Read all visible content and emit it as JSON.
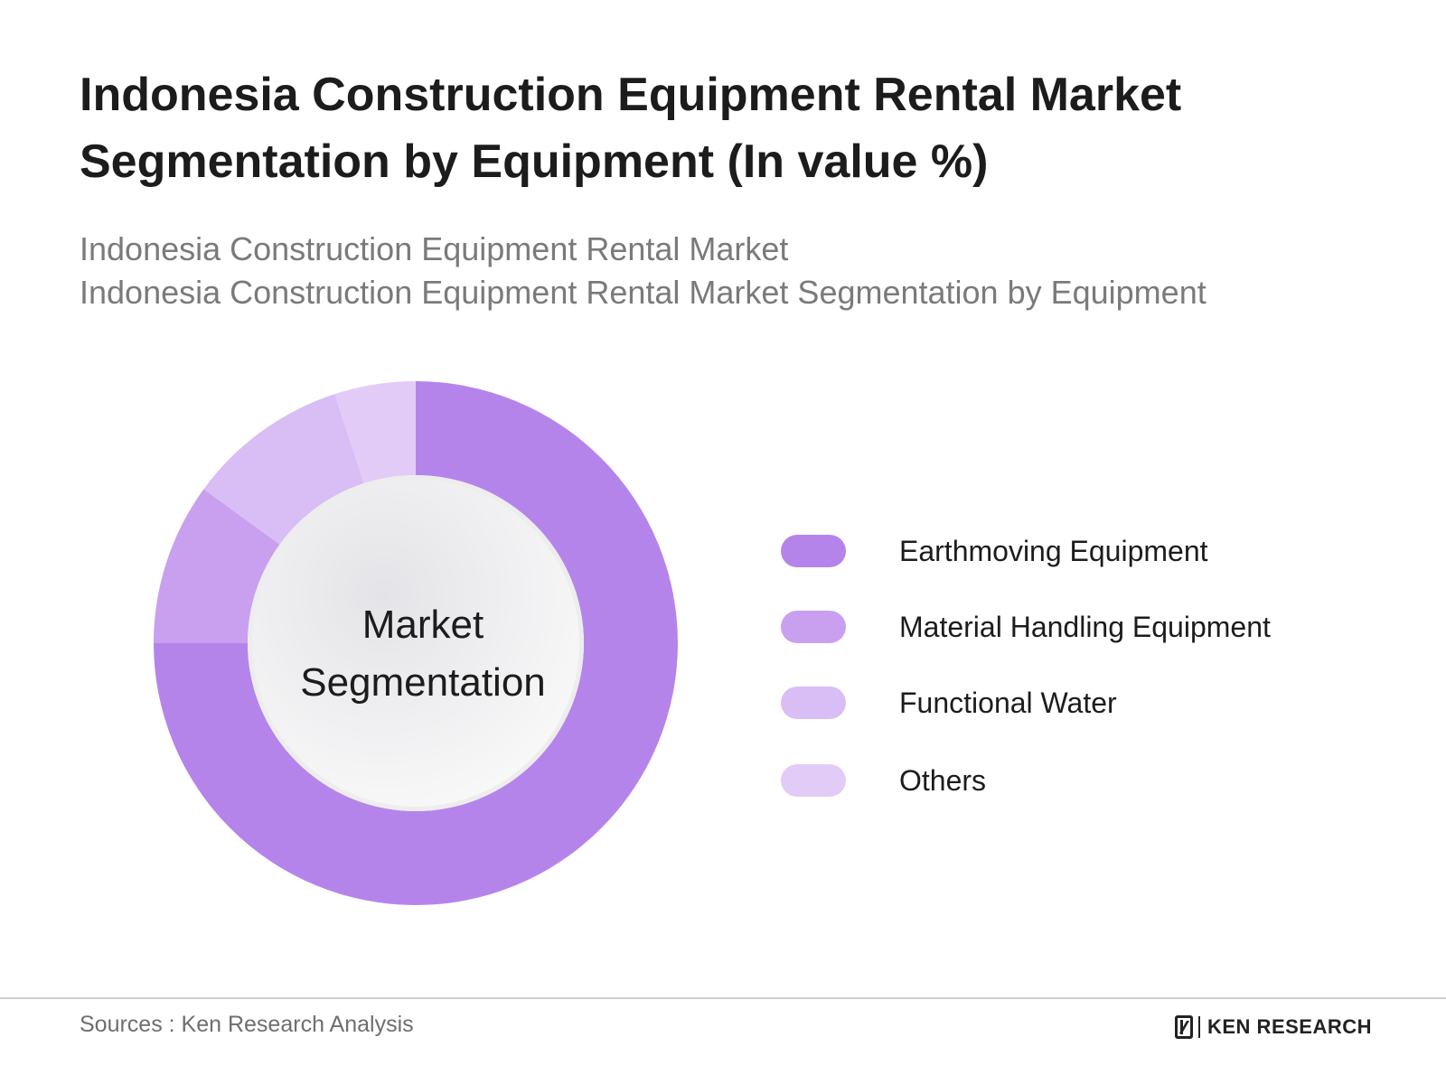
{
  "header": {
    "title": "Indonesia Construction Equipment Rental Market Segmentation by Equipment (In value %)",
    "subtitle_line1": "Indonesia Construction Equipment Rental Market",
    "subtitle_line2": "Indonesia Construction Equipment Rental Market Segmentation by Equipment"
  },
  "chart_data": {
    "type": "pie",
    "variant": "donut",
    "center_label_line1": "Market",
    "center_label_line2": "Segmentation",
    "categories": [
      "Earthmoving Equipment",
      "Material Handling Equipment",
      "Functional Water",
      "Others"
    ],
    "values": [
      75,
      10,
      10,
      5
    ],
    "colors": [
      "#b584eb",
      "#c8a0ef",
      "#d9bdf5",
      "#e2ccf7"
    ],
    "start_angle": "top, clockwise",
    "legend_position": "right"
  },
  "footer": {
    "source": "Sources : Ken Research Analysis",
    "brand": "KEN RESEARCH"
  }
}
